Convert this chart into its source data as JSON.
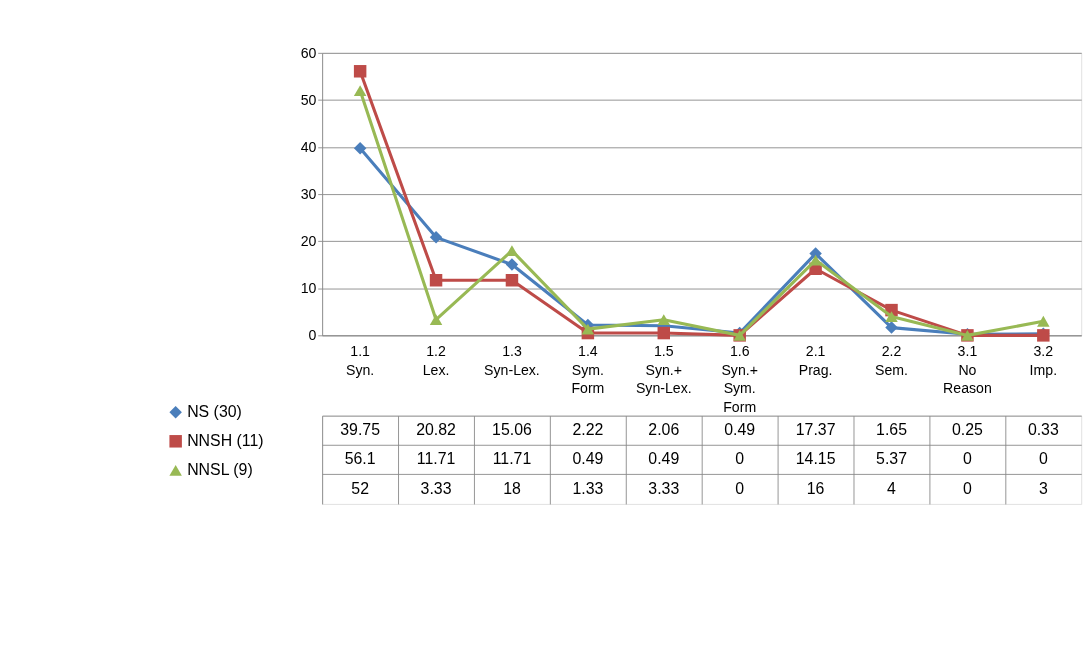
{
  "chart_data": {
    "type": "line",
    "categories": [
      "1.1 Syn.",
      "1.2 Lex.",
      "1.3 Syn-Lex.",
      "1.4 Sym. Form",
      "1.5 Syn.+Syn-Lex.",
      "1.6 Syn.+Sym. Form",
      "2.1 Prag.",
      "2.2 Sem.",
      "3.1 No Reason",
      "3.2 Imp."
    ],
    "series": [
      {
        "name": "NS (30)",
        "color": "#4a7ebb",
        "marker": "diamond",
        "values": [
          39.75,
          20.82,
          15.06,
          2.22,
          2.06,
          0.49,
          17.37,
          1.65,
          0.25,
          0.33
        ]
      },
      {
        "name": "NNSH (11)",
        "color": "#be4b48",
        "marker": "square",
        "values": [
          56.1,
          11.71,
          11.71,
          0.49,
          0.49,
          0,
          14.15,
          5.37,
          0,
          0
        ]
      },
      {
        "name": "NNSL (9)",
        "color": "#98b954",
        "marker": "triangle",
        "values": [
          52,
          3.33,
          18,
          1.33,
          3.33,
          0,
          16,
          4,
          0,
          3
        ]
      }
    ],
    "ylim": [
      0,
      60
    ],
    "yticks": [
      0,
      10,
      20,
      30,
      40,
      50,
      60
    ],
    "grid": "y",
    "legend": "bottom",
    "data_labels": true,
    "line_style": "solid"
  }
}
